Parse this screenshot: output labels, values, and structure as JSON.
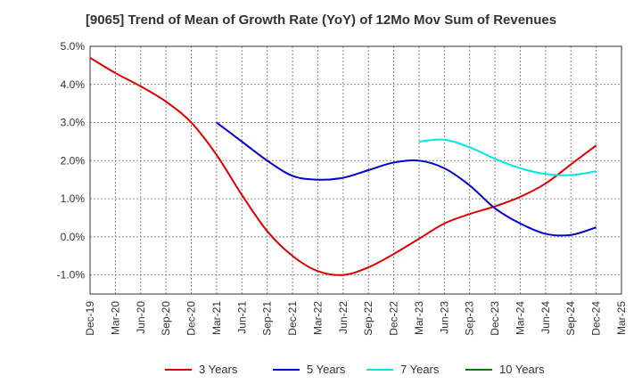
{
  "chart_data": {
    "type": "line",
    "title": "[9065]  Trend of Mean of Growth Rate (YoY) of 12Mo Mov Sum of Revenues",
    "xlabel": "",
    "ylabel": "",
    "ylim": [
      -1.5,
      5.0
    ],
    "yticks": [
      5.0,
      4.0,
      3.0,
      2.0,
      1.0,
      0.0,
      -1.0
    ],
    "ytick_labels": [
      "5.0%",
      "4.0%",
      "3.0%",
      "2.0%",
      "1.0%",
      "0.0%",
      "-1.0%"
    ],
    "categories": [
      "Dec-19",
      "Mar-20",
      "Jun-20",
      "Sep-20",
      "Dec-20",
      "Mar-21",
      "Jun-21",
      "Sep-21",
      "Dec-21",
      "Mar-22",
      "Jun-22",
      "Sep-22",
      "Dec-22",
      "Mar-23",
      "Jun-23",
      "Sep-23",
      "Dec-23",
      "Mar-24",
      "Jun-24",
      "Sep-24",
      "Dec-24",
      "Mar-25"
    ],
    "grid": true,
    "legend_position": "bottom",
    "series": [
      {
        "name": "3 Years",
        "color": "#dd0000",
        "values": [
          4.7,
          4.3,
          3.95,
          3.55,
          3.0,
          2.15,
          1.1,
          0.15,
          -0.5,
          -0.9,
          -1.0,
          -0.8,
          -0.45,
          -0.05,
          0.35,
          0.6,
          0.8,
          1.05,
          1.4,
          1.9,
          2.4,
          null
        ]
      },
      {
        "name": "5 Years",
        "color": "#0000cc",
        "values": [
          null,
          null,
          null,
          null,
          null,
          3.0,
          2.5,
          2.0,
          1.6,
          1.5,
          1.55,
          1.75,
          1.95,
          2.0,
          1.8,
          1.35,
          0.75,
          0.35,
          0.08,
          0.05,
          0.25,
          null
        ]
      },
      {
        "name": "7 Years",
        "color": "#00e5e5",
        "values": [
          null,
          null,
          null,
          null,
          null,
          null,
          null,
          null,
          null,
          null,
          null,
          null,
          null,
          2.5,
          2.55,
          2.35,
          2.05,
          1.8,
          1.65,
          1.62,
          1.72,
          null
        ]
      },
      {
        "name": "10 Years",
        "color": "#008000",
        "values": [
          null,
          null,
          null,
          null,
          null,
          null,
          null,
          null,
          null,
          null,
          null,
          null,
          null,
          null,
          null,
          null,
          null,
          null,
          null,
          null,
          null,
          null
        ]
      }
    ]
  }
}
